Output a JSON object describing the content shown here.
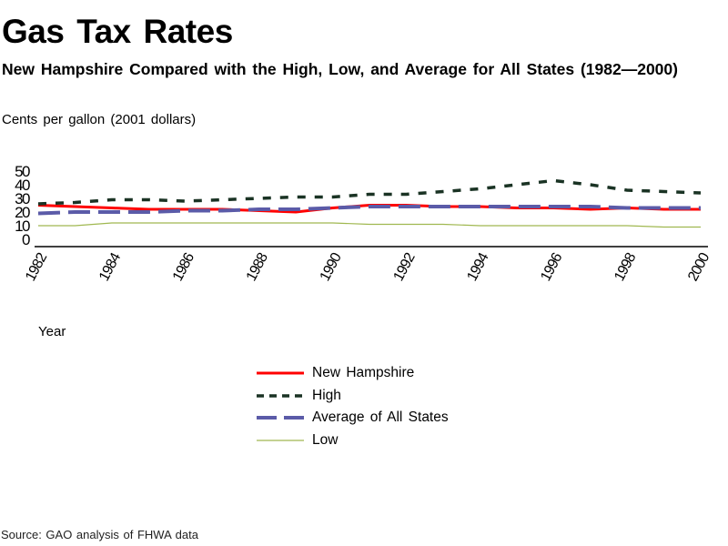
{
  "chart_data": {
    "type": "line",
    "title": "Gas Tax Rates",
    "subtitle": "New Hampshire Compared with the High, Low, and Average for All States (1982—2000)",
    "ylabel": "Cents per gallon (2001 dollars)",
    "xlabel": "Year",
    "source": "Source: GAO analysis of FHWA data",
    "ylim": [
      0,
      50
    ],
    "yticks": [
      "0",
      "10",
      "20",
      "30",
      "40",
      "50"
    ],
    "x": [
      1982,
      1983,
      1984,
      1985,
      1986,
      1987,
      1988,
      1989,
      1990,
      1991,
      1992,
      1993,
      1994,
      1995,
      1996,
      1997,
      1998,
      1999,
      2000
    ],
    "xticks": [
      "1982",
      "1984",
      "1986",
      "1988",
      "1990",
      "1992",
      "1994",
      "1996",
      "1998",
      "2000"
    ],
    "grid": false,
    "legend_position": "bottom-center",
    "series": [
      {
        "name": "New Hampshire",
        "color": "#ff0000",
        "style": "solid",
        "values": [
          25,
          24,
          23,
          22,
          22,
          22,
          21,
          20,
          23,
          25,
          25,
          24,
          24,
          23,
          23,
          22,
          23,
          22,
          22
        ]
      },
      {
        "name": "High",
        "color": "#1a3324",
        "style": "dashed",
        "values": [
          26,
          27,
          29,
          29,
          28,
          29,
          30,
          31,
          31,
          33,
          33,
          35,
          37,
          40,
          43,
          40,
          36,
          35,
          34
        ]
      },
      {
        "name": "Average of All States",
        "color": "#5b5ba8",
        "style": "longdash",
        "values": [
          19,
          20,
          20,
          20,
          21,
          21,
          22,
          22,
          23,
          24,
          24,
          24,
          24,
          24,
          24,
          24,
          23,
          23,
          23
        ]
      },
      {
        "name": "Low",
        "color": "#a0b850",
        "style": "thin",
        "values": [
          10,
          10,
          12,
          12,
          12,
          12,
          12,
          12,
          12,
          11,
          11,
          11,
          10,
          10,
          10,
          10,
          10,
          9,
          9
        ]
      }
    ]
  }
}
